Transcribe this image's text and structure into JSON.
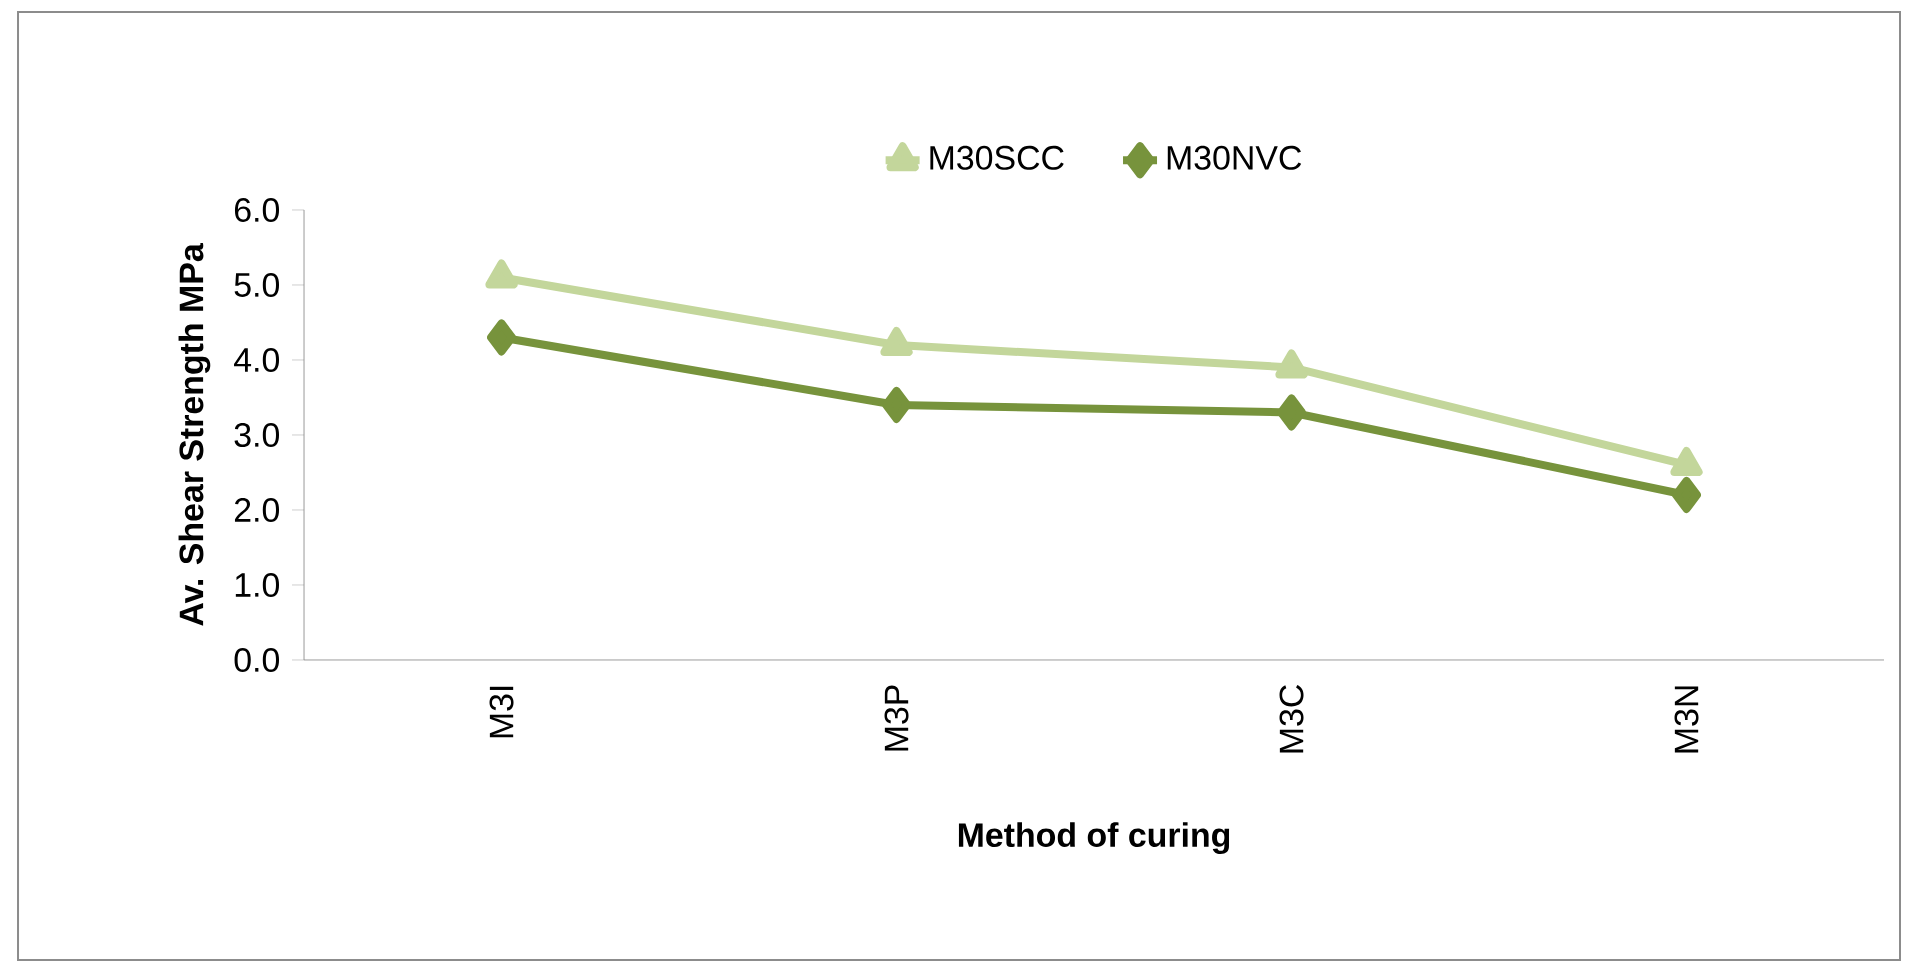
{
  "chart_data": {
    "type": "line",
    "xlabel": "Method of curing",
    "ylabel": "Av. Shear Strength MPa",
    "categories": [
      "M3I",
      "M3P",
      "M3C",
      "M3N"
    ],
    "series": [
      {
        "name": "M30SCC",
        "color": "#c3d69b",
        "marker": "triangle",
        "values": [
          5.1,
          4.2,
          3.9,
          2.6
        ]
      },
      {
        "name": "M30NVC",
        "color": "#77933c",
        "marker": "diamond",
        "values": [
          4.3,
          3.4,
          3.3,
          2.2
        ]
      }
    ],
    "ylim": [
      0,
      6
    ],
    "yticks": [
      {
        "value": 0,
        "label": "0.0"
      },
      {
        "value": 1,
        "label": "1.0"
      },
      {
        "value": 2,
        "label": "2.0"
      },
      {
        "value": 3,
        "label": "3.0"
      },
      {
        "value": 4,
        "label": "4.0"
      },
      {
        "value": 5,
        "label": "5.0"
      },
      {
        "value": 6,
        "label": "6.0"
      }
    ],
    "grid": false,
    "legend": "top"
  }
}
